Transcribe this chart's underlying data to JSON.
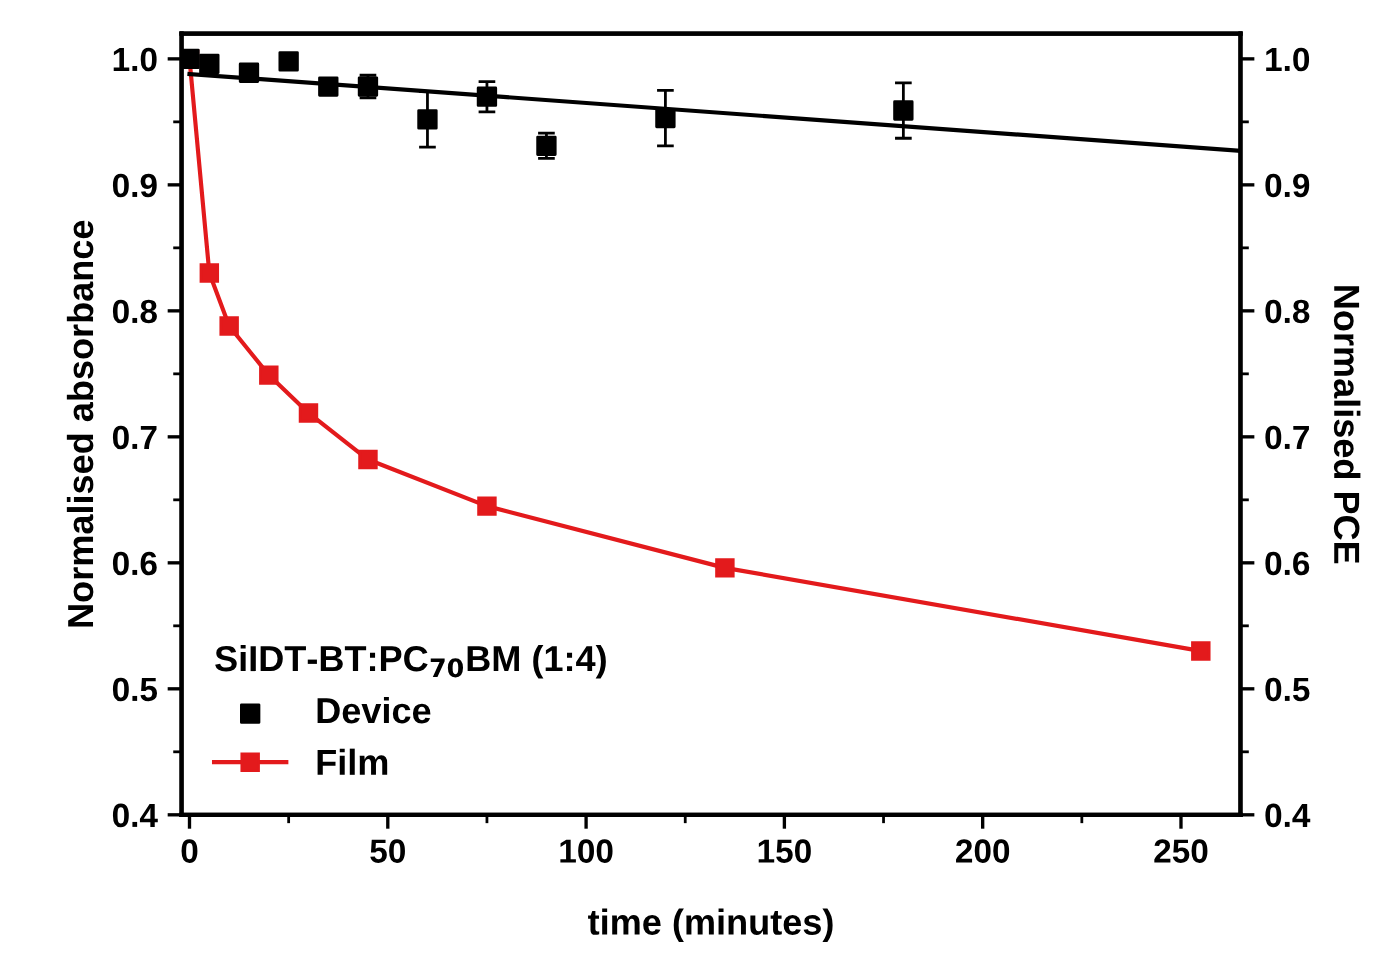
{
  "chart_data": {
    "type": "scatter",
    "xlabel": "time (minutes)",
    "ylabel": "Normalised absorbance",
    "y2label": "Normalised PCE",
    "legend_title": "SiIDT-BT:PC$_{70}$BM (1:4)",
    "legend": "bottom left",
    "grid": false,
    "marker": "square",
    "xlim": [
      -2,
      265
    ],
    "xticks": [
      0,
      50,
      100,
      150,
      200,
      250
    ],
    "ylim": [
      0.4,
      1.02
    ],
    "yticks": [
      0.4,
      0.5,
      0.6,
      0.7,
      0.8,
      0.9,
      {
        "value": 1,
        "label": "1.0"
      }
    ],
    "y2lim": [
      0.4,
      1.02
    ],
    "y2ticks": [
      0.4,
      0.5,
      0.6,
      0.7,
      0.8,
      0.9,
      {
        "value": 1,
        "label": "1.0"
      }
    ],
    "series": [
      {
        "name": "Device",
        "axis": "y2",
        "color": "#000000",
        "x": [
          0,
          5,
          15,
          25,
          35,
          45,
          60,
          75,
          90,
          120,
          180
        ],
        "values": [
          1.0,
          0.996,
          0.989,
          0.998,
          0.978,
          0.978,
          0.952,
          0.97,
          0.931,
          0.953,
          0.959
        ],
        "errors": [
          null,
          null,
          null,
          0.005,
          null,
          0.009,
          0.022,
          0.012,
          0.01,
          0.022,
          0.022
        ]
      },
      {
        "type": "line",
        "axis": "y2",
        "color": "#000000",
        "marker": "none",
        "x": [
          0,
          265
        ],
        "values": [
          0.988,
          0.927
        ]
      },
      {
        "name": "Film",
        "type": "line",
        "color": "#e31a1c",
        "x": [
          0,
          5,
          10,
          20,
          30,
          45,
          75,
          135,
          255
        ],
        "values": [
          1.0,
          0.83,
          0.788,
          0.749,
          0.719,
          0.682,
          0.645,
          0.596,
          0.53
        ]
      }
    ]
  }
}
